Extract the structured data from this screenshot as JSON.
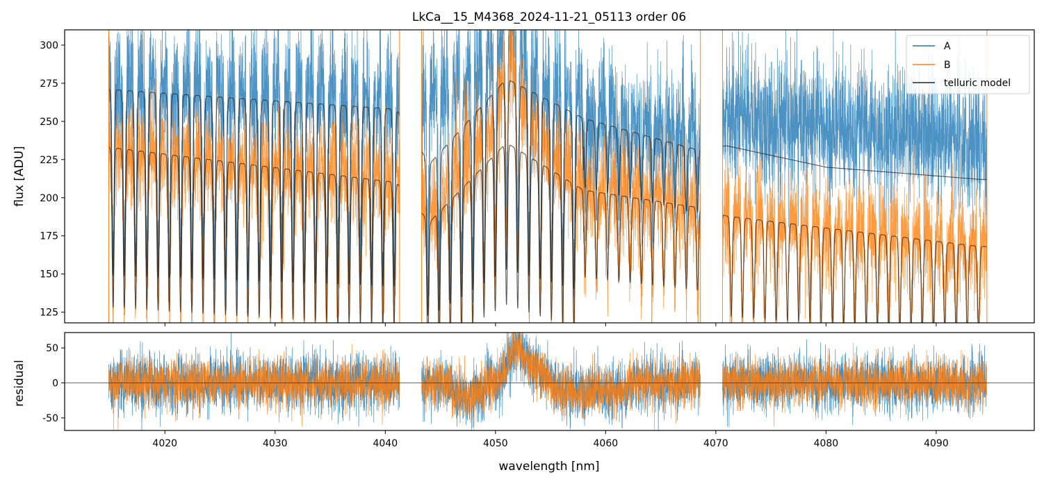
{
  "chart_data": {
    "type": "line",
    "title": "LkCa__15_M4368_2024-11-21_05113  order 06",
    "xlabel": "wavelength [nm]",
    "xlim": [
      4010.9,
      4098.9
    ],
    "x_ticks": [
      4020,
      4030,
      4040,
      4050,
      4060,
      4070,
      4080,
      4090
    ],
    "segments": [
      [
        4014.9,
        4041.3
      ],
      [
        4043.3,
        4068.6
      ],
      [
        4070.6,
        4094.6
      ]
    ],
    "colors": {
      "A": "#1f77b4",
      "B": "#ff7f0e",
      "telluric": "#222222"
    },
    "legend_position": "top-right",
    "panels": [
      {
        "id": "flux",
        "ylabel": "flux [ADU]",
        "ylim": [
          118,
          310
        ],
        "y_ticks": [
          125,
          150,
          175,
          200,
          225,
          250,
          275,
          300
        ],
        "series": [
          {
            "name": "A",
            "approx_continuum": [
              [
                4015,
                270
              ],
              [
                4041,
                262
              ],
              [
                4044,
                262
              ],
              [
                4051,
                290
              ],
              [
                4058,
                250
              ],
              [
                4068,
                240
              ],
              [
                4071,
                248
              ],
              [
                4094,
                232
              ]
            ]
          },
          {
            "name": "B",
            "approx_continuum": [
              [
                4015,
                232
              ],
              [
                4041,
                214
              ],
              [
                4044,
                190
              ],
              [
                4051,
                260
              ],
              [
                4058,
                210
              ],
              [
                4068,
                195
              ],
              [
                4071,
                190
              ],
              [
                4094,
                170
              ]
            ]
          },
          {
            "name": "telluric model",
            "approx_continuum_A": [
              [
                4015,
                271
              ],
              [
                4041,
                258
              ],
              [
                4044,
                222
              ],
              [
                4051,
                278
              ],
              [
                4058,
                252
              ],
              [
                4068,
                232
              ],
              [
                4071,
                234
              ],
              [
                4080,
                220
              ],
              [
                4094,
                212
              ]
            ],
            "approx_continuum_B": [
              [
                4015,
                233
              ],
              [
                4041,
                210
              ],
              [
                4044,
                184
              ],
              [
                4051,
                236
              ],
              [
                4058,
                205
              ],
              [
                4068,
                194
              ],
              [
                4071,
                188
              ],
              [
                4094,
                168
              ]
            ]
          }
        ]
      },
      {
        "id": "residual",
        "ylabel": "residual",
        "ylim": [
          -68,
          72
        ],
        "y_ticks": [
          -50,
          0,
          50
        ],
        "zero_line": true
      }
    ]
  }
}
